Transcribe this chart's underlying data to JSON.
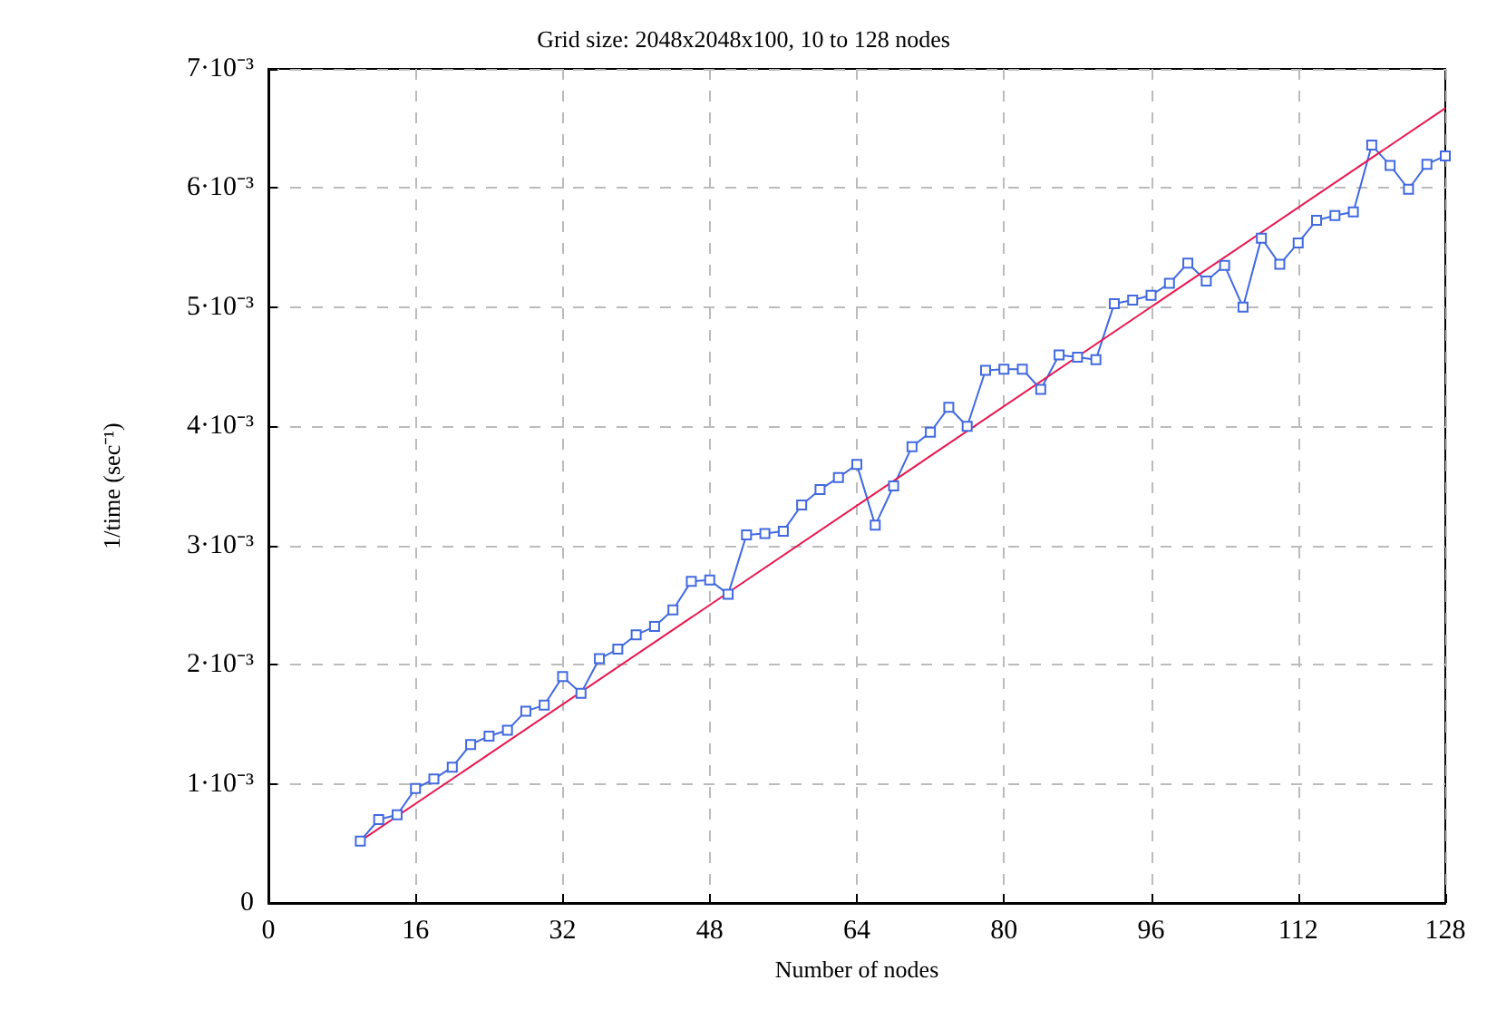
{
  "chart_data": {
    "type": "line",
    "title": "Grid size: 2048x2048x100, 10 to 128 nodes",
    "xlabel": "Number of nodes",
    "ylabel": "1/time (sec⁻¹)",
    "xlim": [
      0,
      128
    ],
    "xticks": [
      0,
      16,
      32,
      48,
      64,
      80,
      96,
      112,
      128
    ],
    "ylim": [
      0,
      0.007
    ],
    "yticks": [
      {
        "value": 0,
        "label": "0"
      },
      {
        "value": 0.001,
        "label": "1·10⁻³"
      },
      {
        "value": 0.002,
        "label": "2·10⁻³"
      },
      {
        "value": 0.003,
        "label": "3·10⁻³"
      },
      {
        "value": 0.004,
        "label": "4·10⁻³"
      },
      {
        "value": 0.005,
        "label": "5·10⁻³"
      },
      {
        "value": 0.006,
        "label": "6·10⁻³"
      },
      {
        "value": 0.007,
        "label": "7·10⁻³"
      }
    ],
    "grid": true,
    "series": [
      {
        "color": "#4169e1",
        "marker": "square",
        "line_style": "solid",
        "x": [
          10,
          12,
          14,
          16,
          18,
          20,
          22,
          24,
          26,
          28,
          30,
          32,
          34,
          36,
          38,
          40,
          42,
          44,
          46,
          48,
          50,
          52,
          54,
          56,
          58,
          60,
          62,
          64,
          66,
          68,
          70,
          72,
          74,
          76,
          78,
          80,
          82,
          84,
          86,
          88,
          90,
          92,
          94,
          96,
          98,
          100,
          102,
          104,
          106,
          108,
          110,
          112,
          114,
          116,
          118,
          120,
          122,
          124,
          126,
          128
        ],
        "values": [
          0.00052,
          0.0007,
          0.00074,
          0.00096,
          0.00104,
          0.00114,
          0.00133,
          0.0014,
          0.00145,
          0.00161,
          0.00166,
          0.0019,
          0.00176,
          0.00205,
          0.00213,
          0.00225,
          0.00232,
          0.00246,
          0.0027,
          0.00271,
          0.00259,
          0.00309,
          0.0031,
          0.00312,
          0.00334,
          0.00347,
          0.00357,
          0.00368,
          0.00317,
          0.0035,
          0.00383,
          0.00395,
          0.00416,
          0.004,
          0.00447,
          0.00448,
          0.00448,
          0.00431,
          0.0046,
          0.00458,
          0.00456,
          0.00503,
          0.00506,
          0.0051,
          0.0052,
          0.00537,
          0.00522,
          0.00535,
          0.005,
          0.00558,
          0.00536,
          0.00554,
          0.00573,
          0.00577,
          0.0058,
          0.00636,
          0.00619,
          0.00599,
          0.0062,
          0.00627
        ]
      },
      {
        "color": "#e8174f",
        "marker": "none",
        "line_style": "solid",
        "x": [
          10,
          128
        ],
        "values": [
          0.00052,
          0.00667
        ]
      }
    ]
  }
}
